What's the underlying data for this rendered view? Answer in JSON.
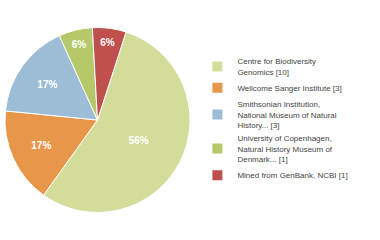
{
  "chart_data": {
    "type": "pie",
    "categories": [
      "Centre for Biodiversity\nGenomics [10]",
      "Wellcome Sanger Institute [3]",
      "Smithsonian Institution,\nNational Museum of Natural\nHistory... [3]",
      "University of Copenhagen,\nNatural History Museum of\nDenmark... [1]",
      "Mined from GenBank, NCBI [1]"
    ],
    "values": [
      56,
      17,
      17,
      6,
      6
    ],
    "value_labels": [
      "56%",
      "17%",
      "17%",
      "6%",
      "6%"
    ],
    "colors": [
      "#d4dc9a",
      "#e8964a",
      "#9dbdd6",
      "#b5c96a",
      "#c0504d"
    ],
    "data_labels": true,
    "legend": "right"
  }
}
